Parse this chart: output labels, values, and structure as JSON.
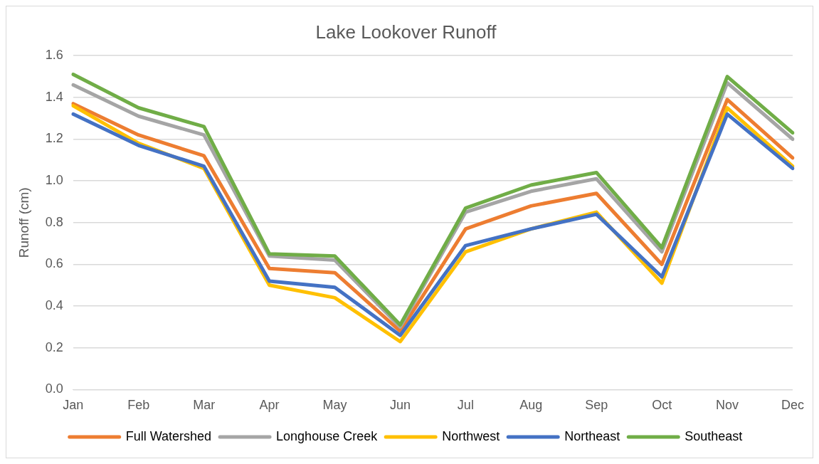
{
  "chart_data": {
    "type": "line",
    "title": "Lake Lookover Runoff",
    "ylabel": "Runoff (cm)",
    "categories": [
      "Jan",
      "Feb",
      "Mar",
      "Apr",
      "May",
      "Jun",
      "Jul",
      "Aug",
      "Sep",
      "Oct",
      "Nov",
      "Dec"
    ],
    "series": [
      {
        "name": "Full Watershed",
        "color": "#ed7d31",
        "values": [
          1.37,
          1.22,
          1.12,
          0.58,
          0.56,
          0.28,
          0.77,
          0.88,
          0.94,
          0.6,
          1.39,
          1.11
        ]
      },
      {
        "name": "Longhouse Creek",
        "color": "#a5a5a5",
        "values": [
          1.46,
          1.31,
          1.22,
          0.64,
          0.62,
          0.3,
          0.85,
          0.95,
          1.01,
          0.66,
          1.47,
          1.2
        ]
      },
      {
        "name": "Northwest",
        "color": "#ffc000",
        "values": [
          1.36,
          1.18,
          1.06,
          0.5,
          0.44,
          0.23,
          0.66,
          0.77,
          0.85,
          0.51,
          1.35,
          1.07
        ]
      },
      {
        "name": "Northeast",
        "color": "#4472c4",
        "values": [
          1.32,
          1.17,
          1.07,
          0.52,
          0.49,
          0.26,
          0.69,
          0.77,
          0.84,
          0.54,
          1.32,
          1.06
        ]
      },
      {
        "name": "Southeast",
        "color": "#70ad47",
        "values": [
          1.51,
          1.35,
          1.26,
          0.65,
          0.64,
          0.31,
          0.87,
          0.98,
          1.04,
          0.68,
          1.5,
          1.23
        ]
      }
    ],
    "ylim": [
      0,
      1.6
    ],
    "yticks": [
      {
        "value": 0,
        "label": "0.0"
      },
      {
        "value": 0.2,
        "label": "0.2"
      },
      {
        "value": 0.4,
        "label": "0.4"
      },
      {
        "value": 0.6,
        "label": "0.6"
      },
      {
        "value": 0.8,
        "label": "0.8"
      },
      {
        "value": 1.0,
        "label": "1.0"
      },
      {
        "value": 1.2,
        "label": "1.2"
      },
      {
        "value": 1.4,
        "label": "1.4"
      },
      {
        "value": 1.6,
        "label": "1.6"
      }
    ],
    "grid": "y",
    "legend": "bottom",
    "marker": "none",
    "line_style": "solid"
  }
}
